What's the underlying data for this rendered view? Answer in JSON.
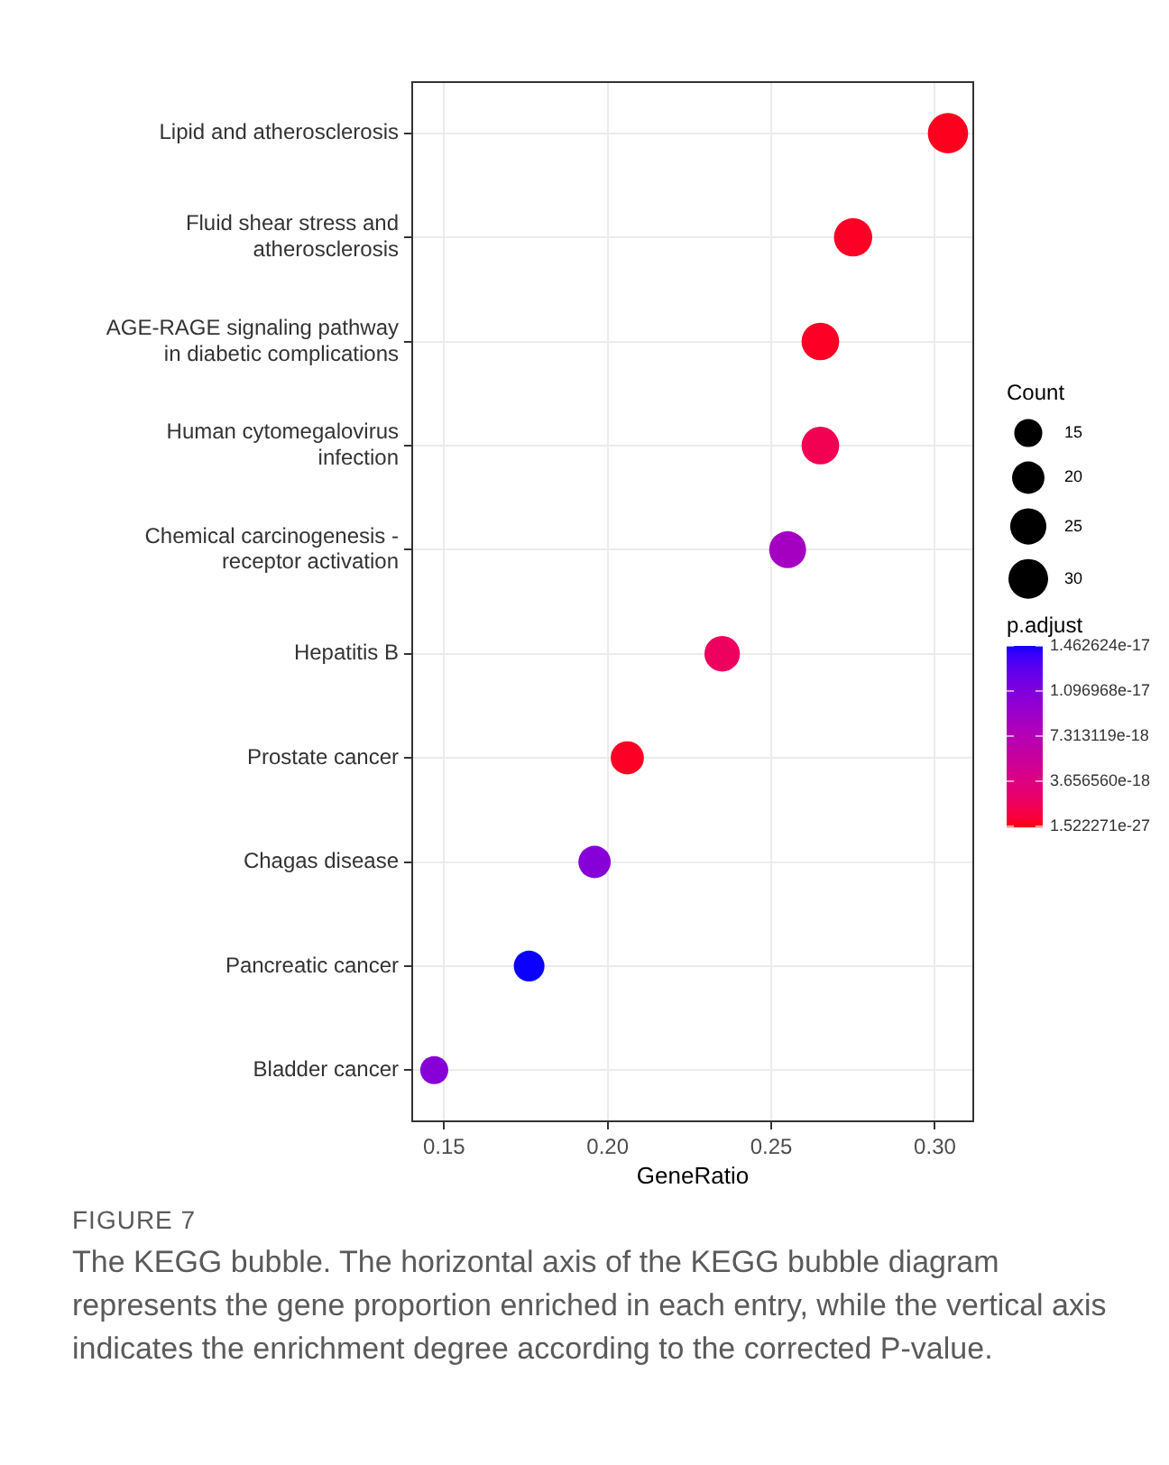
{
  "chart_data": {
    "type": "bubble",
    "xlabel": "GeneRatio",
    "legend_title": "Count",
    "clabel": "p.adjust",
    "grid": true,
    "categories": [
      "Lipid and atherosclerosis",
      "Fluid shear stress and atherosclerosis",
      "AGE-RAGE signaling pathway in diabetic complications",
      "Human cytomegalovirus infection",
      "Chemical carcinogenesis - receptor activation",
      "Hepatitis B",
      "Prostate cancer",
      "Chagas disease",
      "Pancreatic cancer",
      "Bladder cancer"
    ],
    "values": [
      0.304,
      0.275,
      0.265,
      0.265,
      0.255,
      0.235,
      0.206,
      0.196,
      0.176,
      0.147
    ],
    "sizes": [
      31,
      28,
      27,
      27,
      26,
      24,
      21,
      20,
      18,
      15
    ],
    "size_legend": [
      15,
      20,
      25,
      30
    ],
    "cvalues": [
      2e-19,
      3e-19,
      3e-19,
      1.5e-18,
      8.5e-18,
      2e-18,
      3e-19,
      1.05e-17,
      1.46e-17,
      1.05e-17
    ],
    "clim": [
      1.522271e-27,
      1.462624e-17
    ],
    "cticks": [
      {
        "value": 1.522271e-27,
        "label": "1.522271e-27"
      },
      {
        "value": 3.65656e-18,
        "label": "3.656560e-18"
      },
      {
        "value": 7.313119e-18,
        "label": "7.313119e-18"
      },
      {
        "value": 1.096968e-17,
        "label": "1.096968e-17"
      },
      {
        "value": 1.462624e-17,
        "label": "1.462624e-17"
      }
    ],
    "orientation": "horizontal",
    "xlim": [
      0.14,
      0.312
    ],
    "xticks": [
      {
        "value": 0.15,
        "label": "0.15"
      },
      {
        "value": 0.2,
        "label": "0.20"
      },
      {
        "value": 0.25,
        "label": "0.25"
      },
      {
        "value": 0.3,
        "label": "0.30"
      }
    ],
    "annotations": [
      "FIGURE 7",
      "The KEGG bubble. The horizontal axis of the KEGG bubble diagram represents the gene proportion enriched in each entry, while the vertical axis indicates the enrichment degree according to the corrected P-value."
    ]
  }
}
